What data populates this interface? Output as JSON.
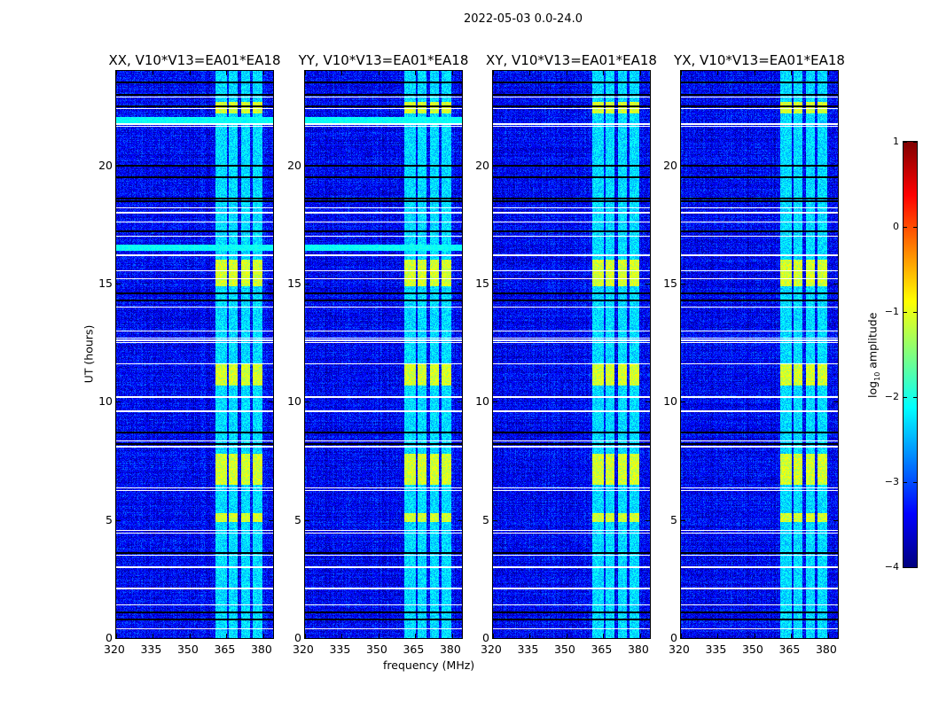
{
  "chart_data": {
    "type": "heatmap",
    "title": "2022-05-03 0.0-24.0",
    "xlabel": "frequency (MHz)",
    "ylabel": "UT (hours)",
    "xlim": [
      320,
      384
    ],
    "ylim": [
      0,
      24
    ],
    "xticks": [
      "320",
      "335",
      "350",
      "365",
      "380"
    ],
    "yticks": [
      "0",
      "5",
      "10",
      "15",
      "20"
    ],
    "colorbar": {
      "label": "log10 amplitude",
      "label_main": "log",
      "label_sub": "10",
      "label_rest": " amplitude",
      "range": [
        -4,
        1
      ],
      "ticks": [
        "1",
        "0",
        "−1",
        "−2",
        "−3",
        "−4"
      ],
      "colormap": "jet"
    },
    "panels": [
      {
        "title": "XX, V10*V13=EA01*EA18",
        "extra_bands": true
      },
      {
        "title": "YY, V10*V13=EA01*EA18",
        "extra_bands": true
      },
      {
        "title": "XY, V10*V13=EA01*EA18",
        "extra_bands": false
      },
      {
        "title": "YX, V10*V13=EA01*EA18",
        "extra_bands": false
      }
    ],
    "background_level": -3.4,
    "rfi_channels_mhz": [
      [
        360.5,
        365.2
      ],
      [
        366,
        369.5
      ],
      [
        371,
        374.5
      ],
      [
        375.6,
        379.6
      ]
    ],
    "rfi_level": -2.3,
    "bright_intervals_hours": [
      [
        4.9,
        5.3
      ],
      [
        6.5,
        7.8
      ],
      [
        10.7,
        11.6
      ],
      [
        14.9,
        16.0
      ],
      [
        22.2,
        22.7
      ]
    ],
    "bright_level": -1.1,
    "flagged_white_hours": [
      0.4,
      1.4,
      2.1,
      3.0,
      3.5,
      4.45,
      4.55,
      6.25,
      6.35,
      8.1,
      8.35,
      9.6,
      10.2,
      11.6,
      12.5,
      12.6,
      12.7,
      13.0,
      14.0,
      15.2,
      15.55,
      16.2,
      17.0,
      17.6,
      18.0,
      18.2,
      21.65,
      21.75,
      22.4,
      22.9
    ],
    "flagged_black_hours": [
      0.8,
      1.1,
      3.6,
      8.2,
      8.7,
      14.3,
      14.6,
      17.2,
      18.5,
      18.6,
      19.5,
      20.0,
      22.5,
      23.0,
      23.5
    ]
  }
}
